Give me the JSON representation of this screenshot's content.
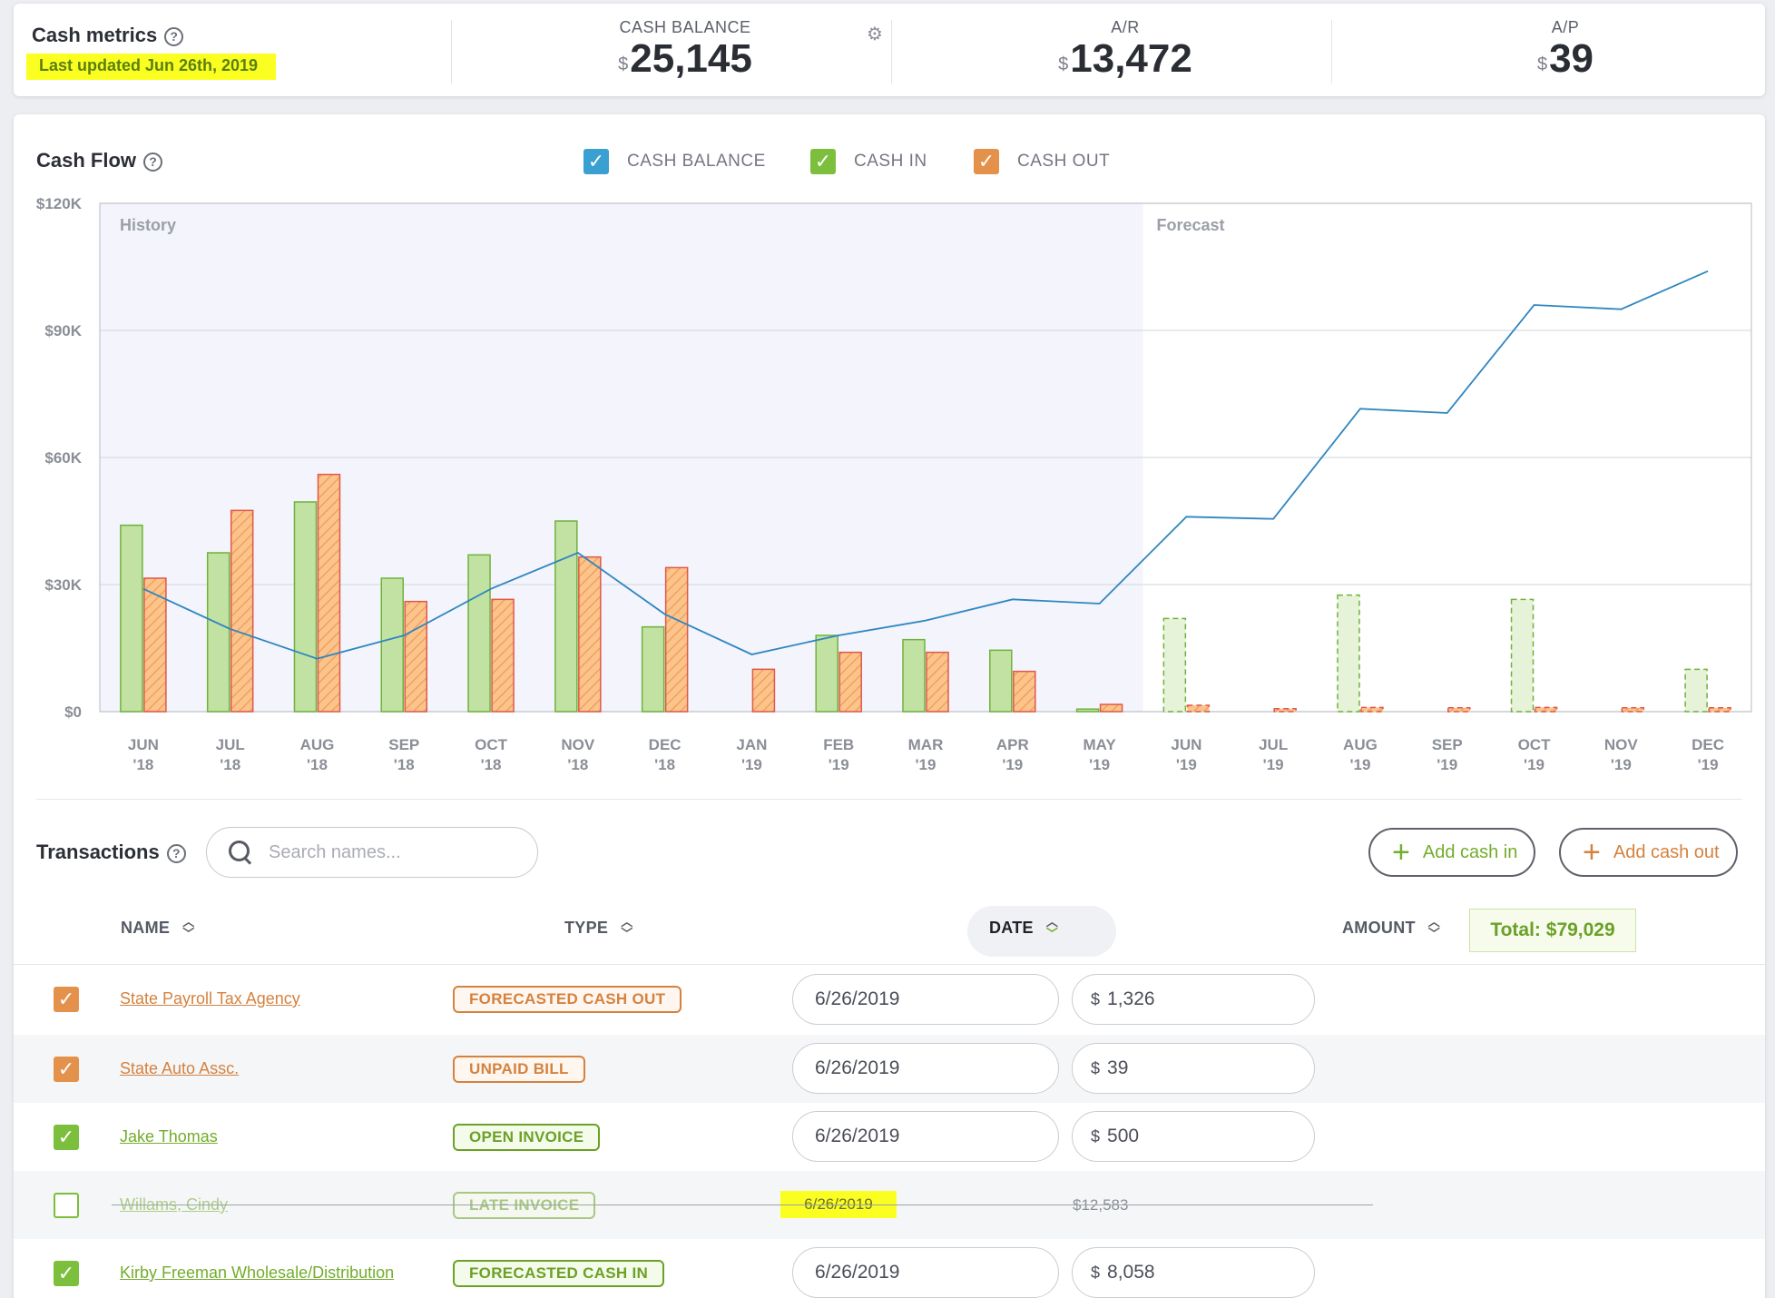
{
  "metrics": {
    "title": "Cash metrics",
    "last_updated": "Last updated Jun 26th, 2019",
    "items": [
      {
        "label": "CASH BALANCE",
        "currency": "$",
        "value": "25,145"
      },
      {
        "label": "A/R",
        "currency": "$",
        "value": "13,472"
      },
      {
        "label": "A/P",
        "currency": "$",
        "value": "39"
      }
    ]
  },
  "cashflow": {
    "title": "Cash Flow",
    "legend": [
      {
        "label": "CASH BALANCE",
        "color": "#3a9fd1"
      },
      {
        "label": "CASH IN",
        "color": "#7bbf3c"
      },
      {
        "label": "CASH OUT",
        "color": "#e4914b"
      }
    ]
  },
  "chart_data": {
    "type": "bar",
    "region_labels": [
      "History",
      "Forecast"
    ],
    "history_months": 12,
    "y_ticks": [
      "$0",
      "$30K",
      "$60K",
      "$90K",
      "$120K"
    ],
    "ylim": [
      0,
      120000
    ],
    "categories": [
      [
        "JUN",
        "'18"
      ],
      [
        "JUL",
        "'18"
      ],
      [
        "AUG",
        "'18"
      ],
      [
        "SEP",
        "'18"
      ],
      [
        "OCT",
        "'18"
      ],
      [
        "NOV",
        "'18"
      ],
      [
        "DEC",
        "'18"
      ],
      [
        "JAN",
        "'19"
      ],
      [
        "FEB",
        "'19"
      ],
      [
        "MAR",
        "'19"
      ],
      [
        "APR",
        "'19"
      ],
      [
        "MAY",
        "'19"
      ],
      [
        "JUN",
        "'19"
      ],
      [
        "JUL",
        "'19"
      ],
      [
        "AUG",
        "'19"
      ],
      [
        "SEP",
        "'19"
      ],
      [
        "OCT",
        "'19"
      ],
      [
        "NOV",
        "'19"
      ],
      [
        "DEC",
        "'19"
      ]
    ],
    "series": [
      {
        "name": "CASH IN",
        "values": [
          44000,
          37500,
          49500,
          31500,
          37000,
          45000,
          20000,
          0,
          18000,
          17000,
          14500,
          600,
          22000,
          0,
          27500,
          0,
          26500,
          0,
          10000
        ]
      },
      {
        "name": "CASH OUT",
        "values": [
          31500,
          47500,
          56000,
          26000,
          26500,
          36500,
          34000,
          10000,
          14000,
          14000,
          9500,
          1700,
          1500,
          700,
          1000,
          900,
          1000,
          900,
          900
        ]
      },
      {
        "name": "CASH BALANCE",
        "values": [
          29000,
          19500,
          12500,
          18000,
          29000,
          37500,
          23000,
          13500,
          18000,
          21500,
          26500,
          25500,
          46000,
          45500,
          71500,
          70500,
          96000,
          95000,
          104000
        ]
      }
    ]
  },
  "transactions": {
    "title": "Transactions",
    "search_placeholder": "Search names...",
    "add_cash_in": "Add cash in",
    "add_cash_out": "Add cash out",
    "columns": {
      "name": "NAME",
      "type": "TYPE",
      "date": "DATE",
      "amount": "AMOUNT"
    },
    "total": "Total: $79,029",
    "currency_symbol": "$",
    "rows": [
      {
        "name": "State Payroll Tax Agency",
        "type": "FORECASTED CASH OUT",
        "date": "6/26/2019",
        "amount": "1,326"
      },
      {
        "name": "State Auto Assc.",
        "type": "UNPAID BILL",
        "date": "6/26/2019",
        "amount": "39"
      },
      {
        "name": "Jake Thomas",
        "type": "OPEN INVOICE",
        "date": "6/26/2019",
        "amount": "500"
      },
      {
        "name": "Willams, Cindy",
        "type": "LATE INVOICE",
        "date": "6/26/2019",
        "amount": "$12,583"
      },
      {
        "name": "Kirby Freeman Wholesale/Distribution",
        "type": "FORECASTED CASH IN",
        "date": "6/26/2019",
        "amount": "8,058"
      }
    ]
  }
}
